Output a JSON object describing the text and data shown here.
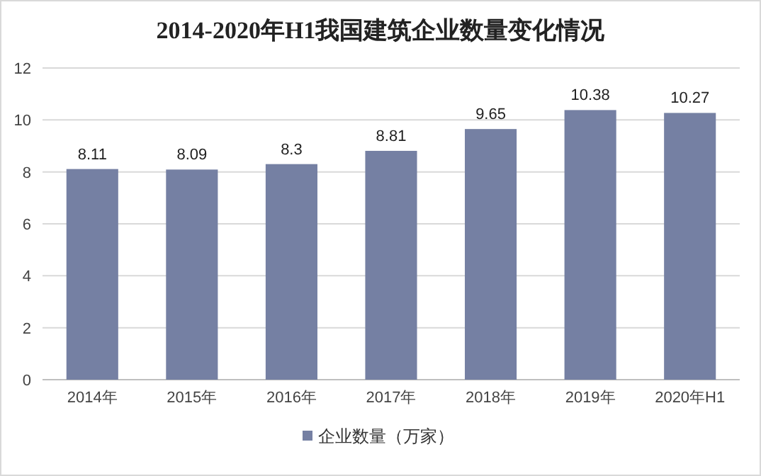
{
  "chart_data": {
    "type": "bar",
    "title": "2014-2020年H1我国建筑企业数量变化情况",
    "categories": [
      "2014年",
      "2015年",
      "2016年",
      "2017年",
      "2018年",
      "2019年",
      "2020年H1"
    ],
    "series": [
      {
        "name": "企业数量（万家）",
        "color": "#7580a3",
        "values": [
          8.11,
          8.09,
          8.3,
          8.81,
          9.65,
          10.38,
          10.27
        ]
      }
    ],
    "ylim": [
      0,
      12
    ],
    "yticks": [
      0,
      2,
      4,
      6,
      8,
      10,
      12
    ],
    "grid": "y",
    "legend": "bottom",
    "data_labels": true
  }
}
